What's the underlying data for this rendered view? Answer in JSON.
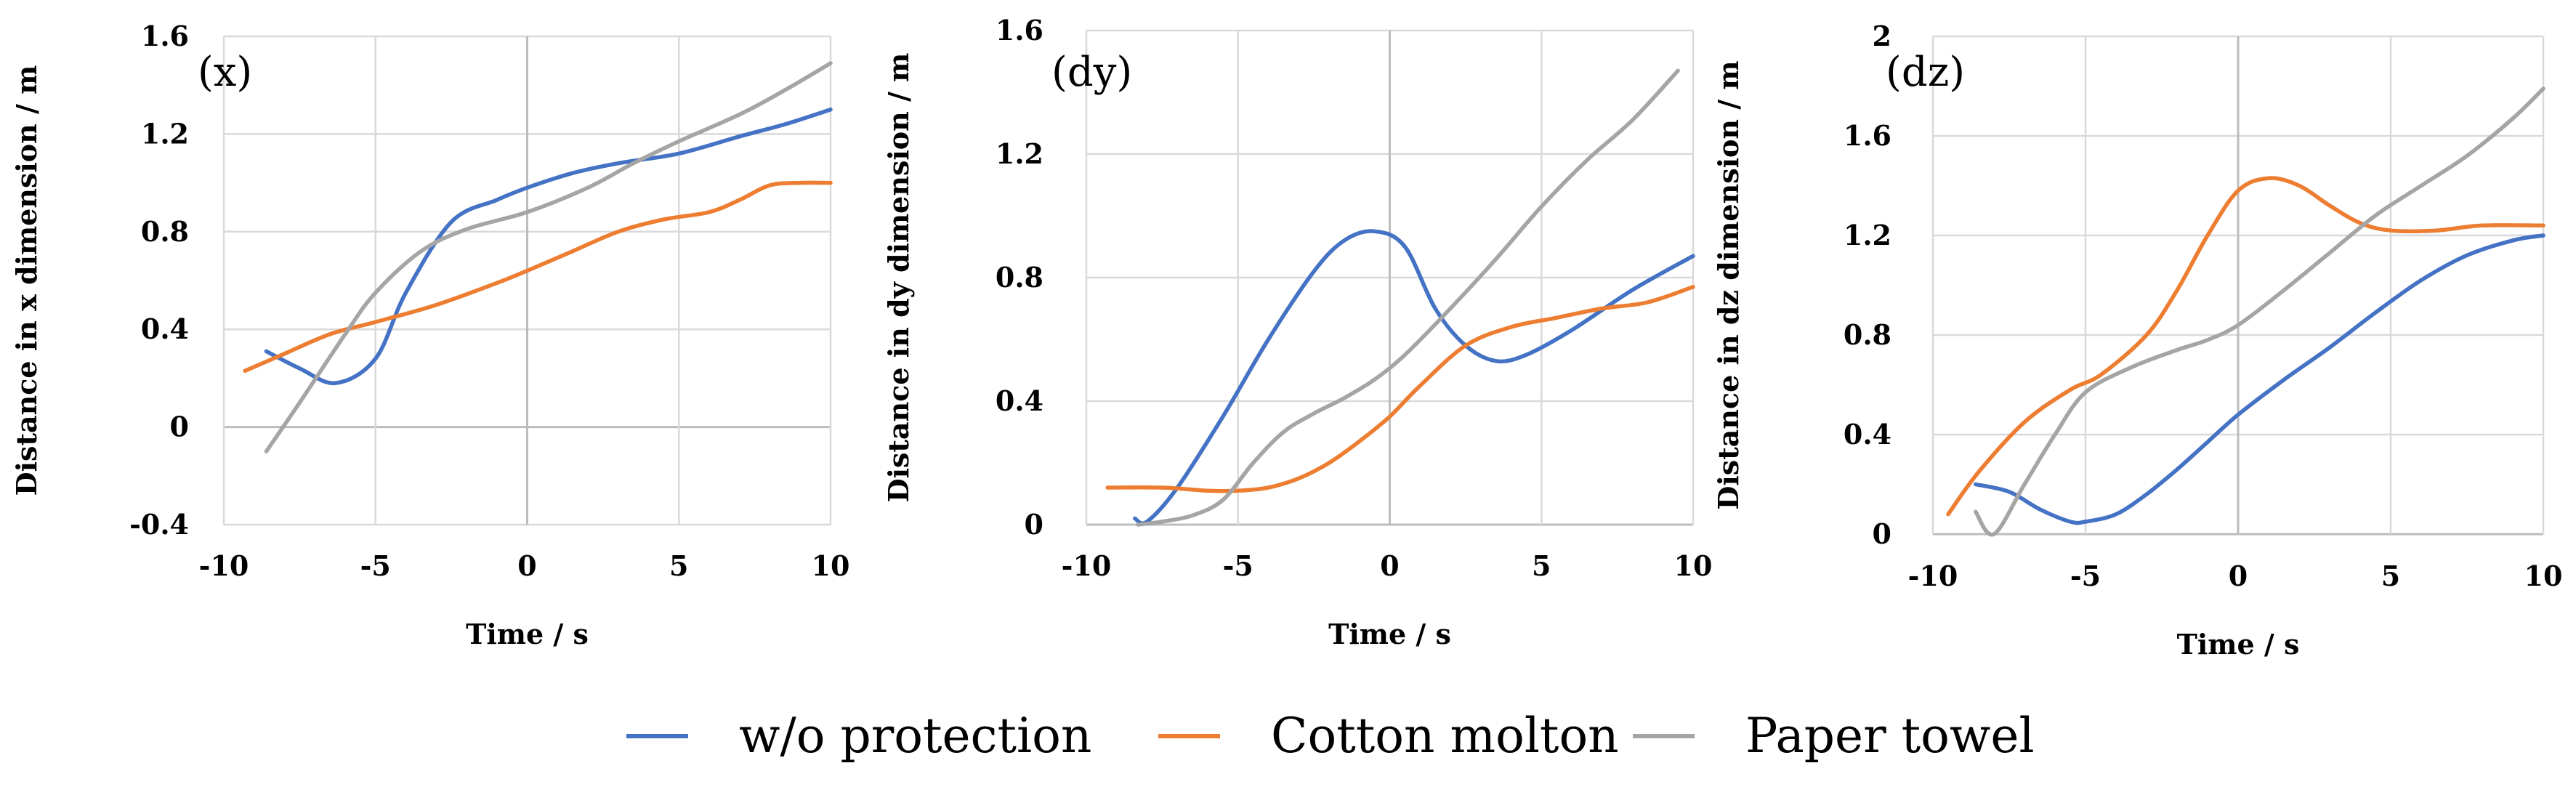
{
  "legend": [
    {
      "label": "w/o protection",
      "color": "#4472C4"
    },
    {
      "label": "Cotton molton",
      "color": "#ED7D31"
    },
    {
      "label": "Paper towel",
      "color": "#A5A5A5"
    }
  ],
  "chart_data": [
    {
      "type": "line",
      "panel_label": "(x)",
      "xlabel": "Time / s",
      "ylabel": "Distance in x dimension / m",
      "xlim": [
        -10,
        10
      ],
      "ylim": [
        -0.4,
        1.6
      ],
      "xticks": [
        -10,
        -5,
        0,
        5,
        10
      ],
      "yticks": [
        -0.4,
        0,
        0.4,
        0.8,
        1.2,
        1.6
      ],
      "grid": true,
      "series": [
        {
          "name": "w/o protection",
          "color": "#4472C4",
          "x": [
            -8.6,
            -7.5,
            -6.3,
            -5.0,
            -4.0,
            -2.5,
            -1.0,
            0,
            1.5,
            3.0,
            5.0,
            7.0,
            8.5,
            10.0
          ],
          "y": [
            0.31,
            0.24,
            0.18,
            0.28,
            0.55,
            0.84,
            0.93,
            0.98,
            1.04,
            1.08,
            1.12,
            1.19,
            1.24,
            1.3
          ]
        },
        {
          "name": "Cotton molton",
          "color": "#ED7D31",
          "x": [
            -9.3,
            -8.0,
            -6.5,
            -5.0,
            -3.0,
            -1.0,
            0,
            1.5,
            3.0,
            4.5,
            6.0,
            7.0,
            8.0,
            9.0,
            10.0
          ],
          "y": [
            0.23,
            0.3,
            0.38,
            0.43,
            0.5,
            0.59,
            0.64,
            0.72,
            0.8,
            0.85,
            0.88,
            0.93,
            0.99,
            1.0,
            1.0
          ]
        },
        {
          "name": "Paper towel",
          "color": "#A5A5A5",
          "x": [
            -8.6,
            -7.5,
            -6.0,
            -5.0,
            -3.5,
            -2.0,
            0,
            2.0,
            3.5,
            5.0,
            7.0,
            8.5,
            10.0
          ],
          "y": [
            -0.1,
            0.1,
            0.38,
            0.55,
            0.72,
            0.81,
            0.88,
            0.98,
            1.08,
            1.17,
            1.28,
            1.38,
            1.49
          ]
        }
      ]
    },
    {
      "type": "line",
      "panel_label": "(dy)",
      "xlabel": "Time / s",
      "ylabel": "Distance in dy dimension / m",
      "xlim": [
        -10,
        10
      ],
      "ylim": [
        0,
        1.6
      ],
      "xticks": [
        -10,
        -5,
        0,
        5,
        10
      ],
      "yticks": [
        0,
        0.4,
        0.8,
        1.2,
        1.6
      ],
      "grid": true,
      "series": [
        {
          "name": "w/o protection",
          "color": "#4472C4",
          "x": [
            -8.4,
            -8.0,
            -7.0,
            -5.5,
            -4.0,
            -2.5,
            -1.5,
            -0.5,
            0.5,
            1.5,
            2.5,
            3.5,
            4.5,
            6.0,
            8.0,
            10.0
          ],
          "y": [
            0.02,
            0.01,
            0.12,
            0.35,
            0.6,
            0.82,
            0.92,
            0.95,
            0.9,
            0.7,
            0.58,
            0.53,
            0.55,
            0.63,
            0.76,
            0.87
          ]
        },
        {
          "name": "Cotton molton",
          "color": "#ED7D31",
          "x": [
            -9.3,
            -7.5,
            -6.0,
            -5.0,
            -4.0,
            -3.0,
            -2.0,
            -1.0,
            0,
            1.0,
            2.5,
            4.0,
            5.5,
            7.0,
            8.5,
            10.0
          ],
          "y": [
            0.12,
            0.12,
            0.11,
            0.11,
            0.12,
            0.15,
            0.2,
            0.27,
            0.35,
            0.45,
            0.58,
            0.64,
            0.67,
            0.7,
            0.72,
            0.77
          ]
        },
        {
          "name": "Paper towel",
          "color": "#A5A5A5",
          "x": [
            -8.3,
            -7.5,
            -6.5,
            -5.5,
            -4.5,
            -3.5,
            -2.5,
            -1.5,
            -0.5,
            0.5,
            2.0,
            3.5,
            5.0,
            6.5,
            8.0,
            9.5
          ],
          "y": [
            0.0,
            0.01,
            0.03,
            0.08,
            0.2,
            0.3,
            0.36,
            0.41,
            0.47,
            0.55,
            0.7,
            0.86,
            1.03,
            1.18,
            1.31,
            1.47
          ]
        }
      ]
    },
    {
      "type": "line",
      "panel_label": "(dz)",
      "xlabel": "Time / s",
      "ylabel": "Distance in dz dimension / m",
      "xlim": [
        -10,
        10
      ],
      "ylim": [
        0,
        2
      ],
      "xticks": [
        -10,
        -5,
        0,
        5,
        10
      ],
      "yticks": [
        0,
        0.4,
        0.8,
        1.2,
        1.6,
        2
      ],
      "grid": true,
      "series": [
        {
          "name": "w/o protection",
          "color": "#4472C4",
          "x": [
            -8.6,
            -7.5,
            -6.5,
            -5.5,
            -5.0,
            -4.0,
            -3.0,
            -2.0,
            -1.0,
            0,
            1.5,
            3.0,
            4.5,
            6.0,
            7.5,
            9.0,
            10.0
          ],
          "y": [
            0.2,
            0.17,
            0.1,
            0.05,
            0.05,
            0.08,
            0.16,
            0.26,
            0.37,
            0.48,
            0.62,
            0.75,
            0.89,
            1.02,
            1.12,
            1.18,
            1.2
          ]
        },
        {
          "name": "Cotton molton",
          "color": "#ED7D31",
          "x": [
            -9.5,
            -8.5,
            -7.0,
            -5.5,
            -4.5,
            -3.0,
            -2.0,
            -1.0,
            0,
            1.0,
            2.0,
            3.0,
            4.0,
            5.0,
            6.5,
            8.0,
            10.0
          ],
          "y": [
            0.08,
            0.25,
            0.45,
            0.58,
            0.64,
            0.8,
            0.98,
            1.2,
            1.38,
            1.43,
            1.4,
            1.32,
            1.25,
            1.22,
            1.22,
            1.24,
            1.24
          ]
        },
        {
          "name": "Paper towel",
          "color": "#A5A5A5",
          "x": [
            -8.6,
            -8.0,
            -7.0,
            -6.0,
            -5.0,
            -3.5,
            -2.0,
            -1.0,
            0,
            1.5,
            3.0,
            4.5,
            6.0,
            7.5,
            9.0,
            10.0
          ],
          "y": [
            0.09,
            0.0,
            0.2,
            0.4,
            0.57,
            0.67,
            0.74,
            0.78,
            0.84,
            0.98,
            1.13,
            1.28,
            1.4,
            1.52,
            1.67,
            1.79
          ]
        }
      ]
    }
  ]
}
